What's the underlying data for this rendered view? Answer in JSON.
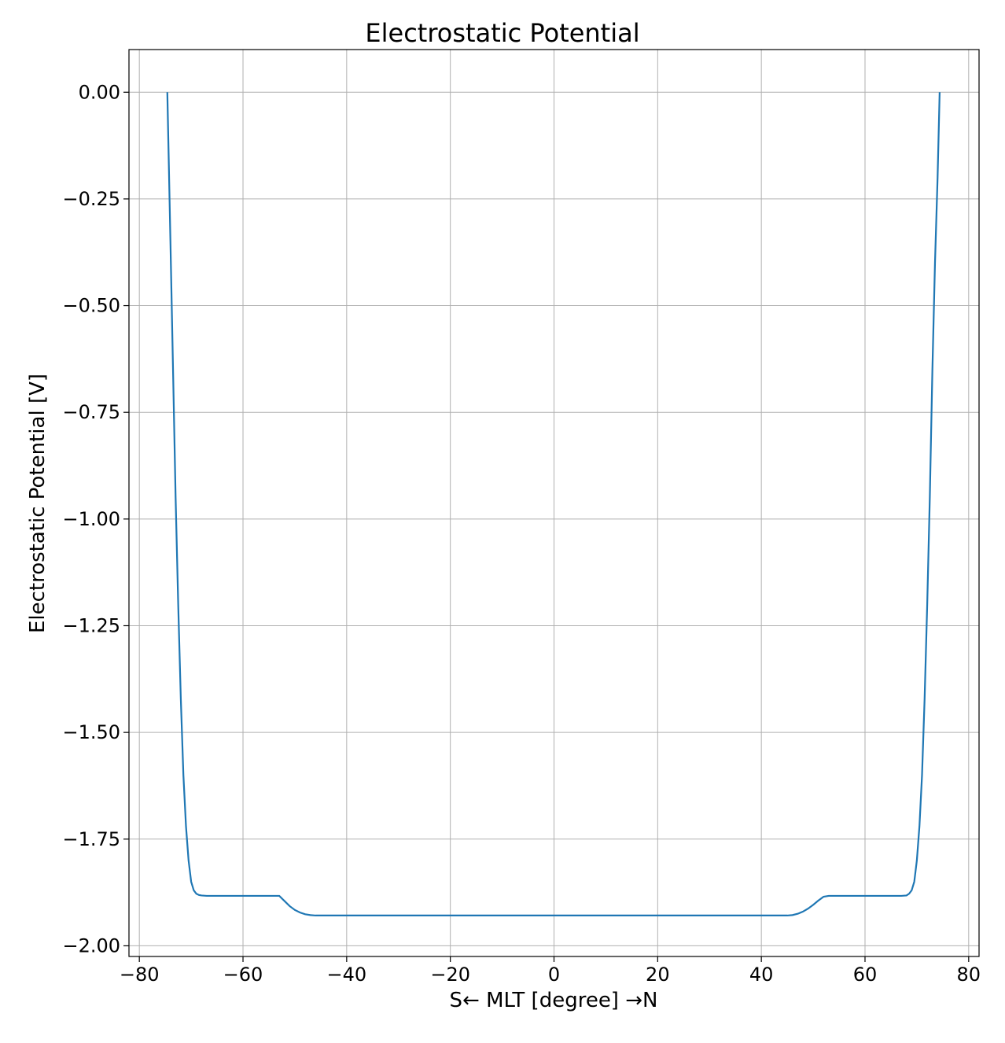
{
  "chart_data": {
    "type": "line",
    "title": "Electrostatic Potential",
    "xlabel": "S← MLT [degree] →N",
    "ylabel": "Electrostatic Potential [V]",
    "xlim": [
      -82,
      82
    ],
    "ylim": [
      -2.025,
      0.1
    ],
    "xticks": [
      -80,
      -60,
      -40,
      -20,
      0,
      20,
      40,
      60,
      80
    ],
    "xtick_labels": [
      "−80",
      "−60",
      "−40",
      "−20",
      "0",
      "20",
      "40",
      "60",
      "80"
    ],
    "yticks": [
      0.0,
      -0.25,
      -0.5,
      -0.75,
      -1.0,
      -1.25,
      -1.5,
      -1.75,
      -2.0
    ],
    "ytick_labels": [
      "0.00",
      "−0.25",
      "−0.50",
      "−0.75",
      "−1.00",
      "−1.25",
      "−1.50",
      "−1.75",
      "−2.00"
    ],
    "grid": true,
    "line_color": "#1f77b4",
    "series": [
      {
        "x": [
          -74.6,
          -74.0,
          -73.5,
          -73.0,
          -72.5,
          -72.0,
          -71.5,
          -71.0,
          -70.5,
          -70.0,
          -69.5,
          -69.0,
          -68.5,
          -68.0,
          -67.0,
          -65.0,
          -60.0,
          -55.0,
          -53.0,
          -52.0,
          -51.0,
          -50.0,
          -49.0,
          -48.0,
          -47.0,
          -46.0,
          -45.0,
          -40.0,
          -20.0,
          0.0,
          20.0,
          40.0,
          45.0,
          46.0,
          47.0,
          48.0,
          49.0,
          50.0,
          51.0,
          52.0,
          53.0,
          55.0,
          60.0,
          65.0,
          67.0,
          68.0,
          68.5,
          69.0,
          69.5,
          70.0,
          70.5,
          71.0,
          71.5,
          72.0,
          72.5,
          73.0,
          73.5,
          74.0,
          74.4
        ],
        "y": [
          0.0,
          -0.35,
          -0.65,
          -0.95,
          -1.2,
          -1.42,
          -1.6,
          -1.72,
          -1.8,
          -1.85,
          -1.87,
          -1.878,
          -1.881,
          -1.882,
          -1.883,
          -1.883,
          -1.883,
          -1.883,
          -1.883,
          -1.895,
          -1.907,
          -1.916,
          -1.922,
          -1.926,
          -1.928,
          -1.929,
          -1.929,
          -1.929,
          -1.929,
          -1.929,
          -1.929,
          -1.929,
          -1.929,
          -1.928,
          -1.925,
          -1.92,
          -1.913,
          -1.904,
          -1.894,
          -1.885,
          -1.883,
          -1.883,
          -1.883,
          -1.883,
          -1.883,
          -1.882,
          -1.878,
          -1.87,
          -1.85,
          -1.8,
          -1.72,
          -1.6,
          -1.42,
          -1.2,
          -0.95,
          -0.65,
          -0.4,
          -0.2,
          0.0
        ]
      }
    ]
  }
}
